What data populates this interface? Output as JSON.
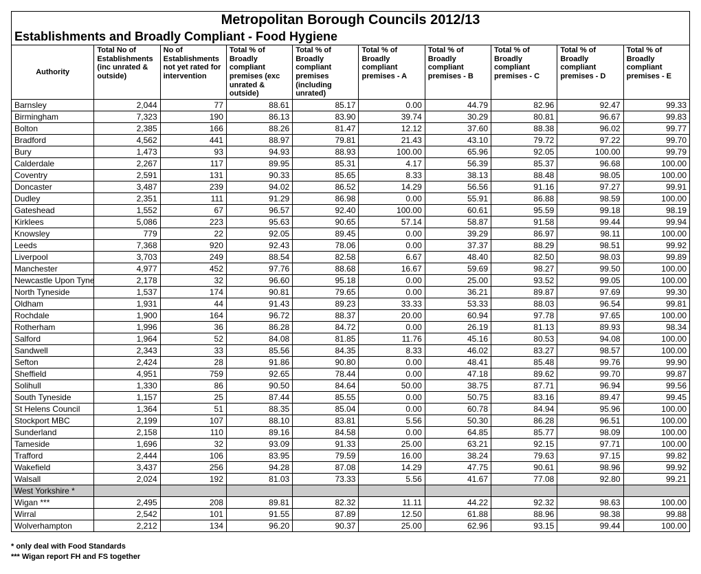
{
  "title": "Metropolitan Borough Councils 2012/13",
  "subtitle": "Establishments and Broadly Compliant - Food Hygiene",
  "columns": [
    "Authority",
    "Total No of Establishments (inc unrated & outside)",
    "No of Establishments not yet rated for intervention",
    "Total % of Broadly compliant premises (exc unrated & outside)",
    "Total % of Broadly compliant premises (including unrated)",
    "Total % of Broadly compliant premises - A",
    "Total % of Broadly compliant premises - B",
    "Total % of Broadly compliant premises - C",
    "Total % of Broadly compliant premises - D",
    "Total % of Broadly compliant premises - E"
  ],
  "rows": [
    [
      "Barnsley",
      "2,044",
      "77",
      "88.61",
      "85.17",
      "0.00",
      "44.79",
      "82.96",
      "92.47",
      "99.33"
    ],
    [
      "Birmingham",
      "7,323",
      "190",
      "86.13",
      "83.90",
      "39.74",
      "30.29",
      "80.81",
      "96.67",
      "99.83"
    ],
    [
      "Bolton",
      "2,385",
      "166",
      "88.26",
      "81.47",
      "12.12",
      "37.60",
      "88.38",
      "96.02",
      "99.77"
    ],
    [
      "Bradford",
      "4,562",
      "441",
      "88.97",
      "79.81",
      "21.43",
      "43.10",
      "79.72",
      "97.22",
      "99.70"
    ],
    [
      "Bury",
      "1,473",
      "93",
      "94.93",
      "88.93",
      "100.00",
      "65.96",
      "92.05",
      "100.00",
      "99.79"
    ],
    [
      "Calderdale",
      "2,267",
      "117",
      "89.95",
      "85.31",
      "4.17",
      "56.39",
      "85.37",
      "96.68",
      "100.00"
    ],
    [
      "Coventry",
      "2,591",
      "131",
      "90.33",
      "85.65",
      "8.33",
      "38.13",
      "88.48",
      "98.05",
      "100.00"
    ],
    [
      "Doncaster",
      "3,487",
      "239",
      "94.02",
      "86.52",
      "14.29",
      "56.56",
      "91.16",
      "97.27",
      "99.91"
    ],
    [
      "Dudley",
      "2,351",
      "111",
      "91.29",
      "86.98",
      "0.00",
      "55.91",
      "86.88",
      "98.59",
      "100.00"
    ],
    [
      "Gateshead",
      "1,552",
      "67",
      "96.57",
      "92.40",
      "100.00",
      "60.61",
      "95.59",
      "99.18",
      "98.19"
    ],
    [
      "Kirklees",
      "5,086",
      "223",
      "95.63",
      "90.65",
      "57.14",
      "58.87",
      "91.58",
      "99.44",
      "99.94"
    ],
    [
      "Knowsley",
      "779",
      "22",
      "92.05",
      "89.45",
      "0.00",
      "39.29",
      "86.97",
      "98.11",
      "100.00"
    ],
    [
      "Leeds",
      "7,368",
      "920",
      "92.43",
      "78.06",
      "0.00",
      "37.37",
      "88.29",
      "98.51",
      "99.92"
    ],
    [
      "Liverpool",
      "3,703",
      "249",
      "88.54",
      "82.58",
      "6.67",
      "48.40",
      "82.50",
      "98.03",
      "99.89"
    ],
    [
      "Manchester",
      "4,977",
      "452",
      "97.76",
      "88.68",
      "16.67",
      "59.69",
      "98.27",
      "99.50",
      "100.00"
    ],
    [
      "Newcastle Upon Tyne",
      "2,178",
      "32",
      "96.60",
      "95.18",
      "0.00",
      "25.00",
      "93.52",
      "99.05",
      "100.00"
    ],
    [
      "North Tyneside",
      "1,537",
      "174",
      "90.81",
      "79.65",
      "0.00",
      "36.21",
      "89.87",
      "97.69",
      "99.30"
    ],
    [
      "Oldham",
      "1,931",
      "44",
      "91.43",
      "89.23",
      "33.33",
      "53.33",
      "88.03",
      "96.54",
      "99.81"
    ],
    [
      "Rochdale",
      "1,900",
      "164",
      "96.72",
      "88.37",
      "20.00",
      "60.94",
      "97.78",
      "97.65",
      "100.00"
    ],
    [
      "Rotherham",
      "1,996",
      "36",
      "86.28",
      "84.72",
      "0.00",
      "26.19",
      "81.13",
      "89.93",
      "98.34"
    ],
    [
      "Salford",
      "1,964",
      "52",
      "84.08",
      "81.85",
      "11.76",
      "45.16",
      "80.53",
      "94.08",
      "100.00"
    ],
    [
      "Sandwell",
      "2,343",
      "33",
      "85.56",
      "84.35",
      "8.33",
      "46.02",
      "83.27",
      "98.57",
      "100.00"
    ],
    [
      "Sefton",
      "2,424",
      "28",
      "91.86",
      "90.80",
      "0.00",
      "48.41",
      "85.48",
      "99.76",
      "99.90"
    ],
    [
      "Sheffield",
      "4,951",
      "759",
      "92.65",
      "78.44",
      "0.00",
      "47.18",
      "89.62",
      "99.70",
      "99.87"
    ],
    [
      "Solihull",
      "1,330",
      "86",
      "90.50",
      "84.64",
      "50.00",
      "38.75",
      "87.71",
      "96.94",
      "99.56"
    ],
    [
      "South Tyneside",
      "1,157",
      "25",
      "87.44",
      "85.55",
      "0.00",
      "50.75",
      "83.16",
      "89.47",
      "99.45"
    ],
    [
      "St Helens Council",
      "1,364",
      "51",
      "88.35",
      "85.04",
      "0.00",
      "60.78",
      "84.94",
      "95.96",
      "100.00"
    ],
    [
      "Stockport MBC",
      "2,199",
      "107",
      "88.10",
      "83.81",
      "5.56",
      "50.30",
      "86.28",
      "96.51",
      "100.00"
    ],
    [
      "Sunderland",
      "2,158",
      "110",
      "89.16",
      "84.58",
      "0.00",
      "64.85",
      "85.77",
      "98.09",
      "100.00"
    ],
    [
      "Tameside",
      "1,696",
      "32",
      "93.09",
      "91.33",
      "25.00",
      "63.21",
      "92.15",
      "97.71",
      "100.00"
    ],
    [
      "Trafford",
      "2,444",
      "106",
      "83.95",
      "79.59",
      "16.00",
      "38.24",
      "79.63",
      "97.15",
      "99.82"
    ],
    [
      "Wakefield",
      "3,437",
      "256",
      "94.28",
      "87.08",
      "14.29",
      "47.75",
      "90.61",
      "98.96",
      "99.92"
    ],
    [
      "Walsall",
      "2,024",
      "192",
      "81.03",
      "73.33",
      "5.56",
      "41.67",
      "77.08",
      "92.80",
      "99.21"
    ]
  ],
  "grey_label": "West Yorkshire *",
  "rows_after": [
    [
      "Wigan ***",
      "2,495",
      "208",
      "89.81",
      "82.32",
      "11.11",
      "44.22",
      "92.32",
      "98.63",
      "100.00"
    ],
    [
      "Wirral",
      "2,542",
      "101",
      "91.55",
      "87.89",
      "12.50",
      "61.88",
      "88.96",
      "98.38",
      "99.88"
    ],
    [
      "Wolverhampton",
      "2,212",
      "134",
      "96.20",
      "90.37",
      "25.00",
      "62.96",
      "93.15",
      "99.44",
      "100.00"
    ]
  ],
  "footnotes": [
    "* only deal with Food Standards",
    "*** Wigan report FH and FS together"
  ],
  "style": {
    "grey_row_bg": "#cccccc",
    "font_family": "Arial",
    "title_fontsize": 20,
    "subtitle_fontsize": 18,
    "body_fontsize": 12
  }
}
